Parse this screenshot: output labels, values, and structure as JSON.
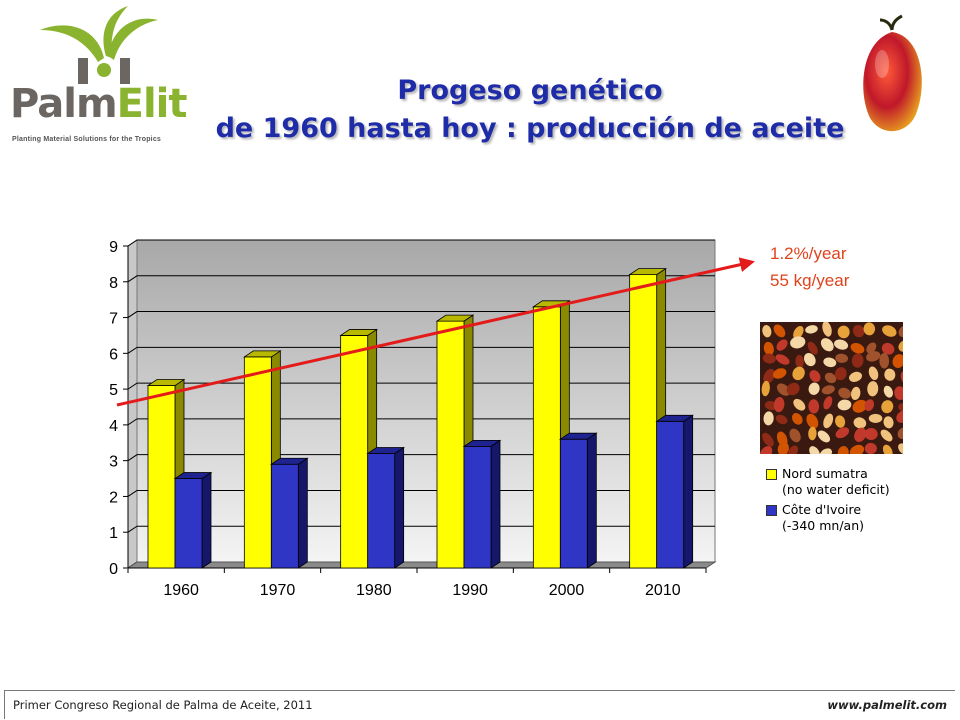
{
  "header": {
    "logo_brand_main": "Palm",
    "logo_brand_accent": "Elit",
    "logo_tagline": "Planting Material Solutions for the Tropics",
    "title_line1": "Progeso genético",
    "title_line2": "de 1960 hasta hoy : producción de aceite"
  },
  "trend_annotation": {
    "line1": "1.2%/year",
    "line2": "55 kg/year",
    "color": "#e31b1b"
  },
  "chart_data": {
    "type": "bar",
    "categories": [
      "1960",
      "1970",
      "1980",
      "1990",
      "2000",
      "2010"
    ],
    "series": [
      {
        "name": "Nord sumatra (no water deficit)",
        "values": [
          5.1,
          5.9,
          6.5,
          6.9,
          7.3,
          8.2
        ],
        "color": "#ffff00"
      },
      {
        "name": "Côte d'Ivoire (-340 mn/an)",
        "values": [
          2.5,
          2.9,
          3.2,
          3.4,
          3.6,
          4.1
        ],
        "color": "#2f35c4"
      }
    ],
    "ylim": [
      0,
      9
    ],
    "yticks": [
      0,
      1,
      2,
      3,
      4,
      5,
      6,
      7,
      8,
      9
    ],
    "grid": true,
    "legend_placement": "right",
    "style": "3d"
  },
  "legend": {
    "item1_line1": "Nord sumatra",
    "item1_line2": "(no water deficit)",
    "item2_line1": "Côte d'Ivoire",
    "item2_line2": "(-340 mn/an)"
  },
  "footer": {
    "left": "Primer Congreso Regional de Palma de Aceite, 2011",
    "right": "www.palmelit.com"
  }
}
